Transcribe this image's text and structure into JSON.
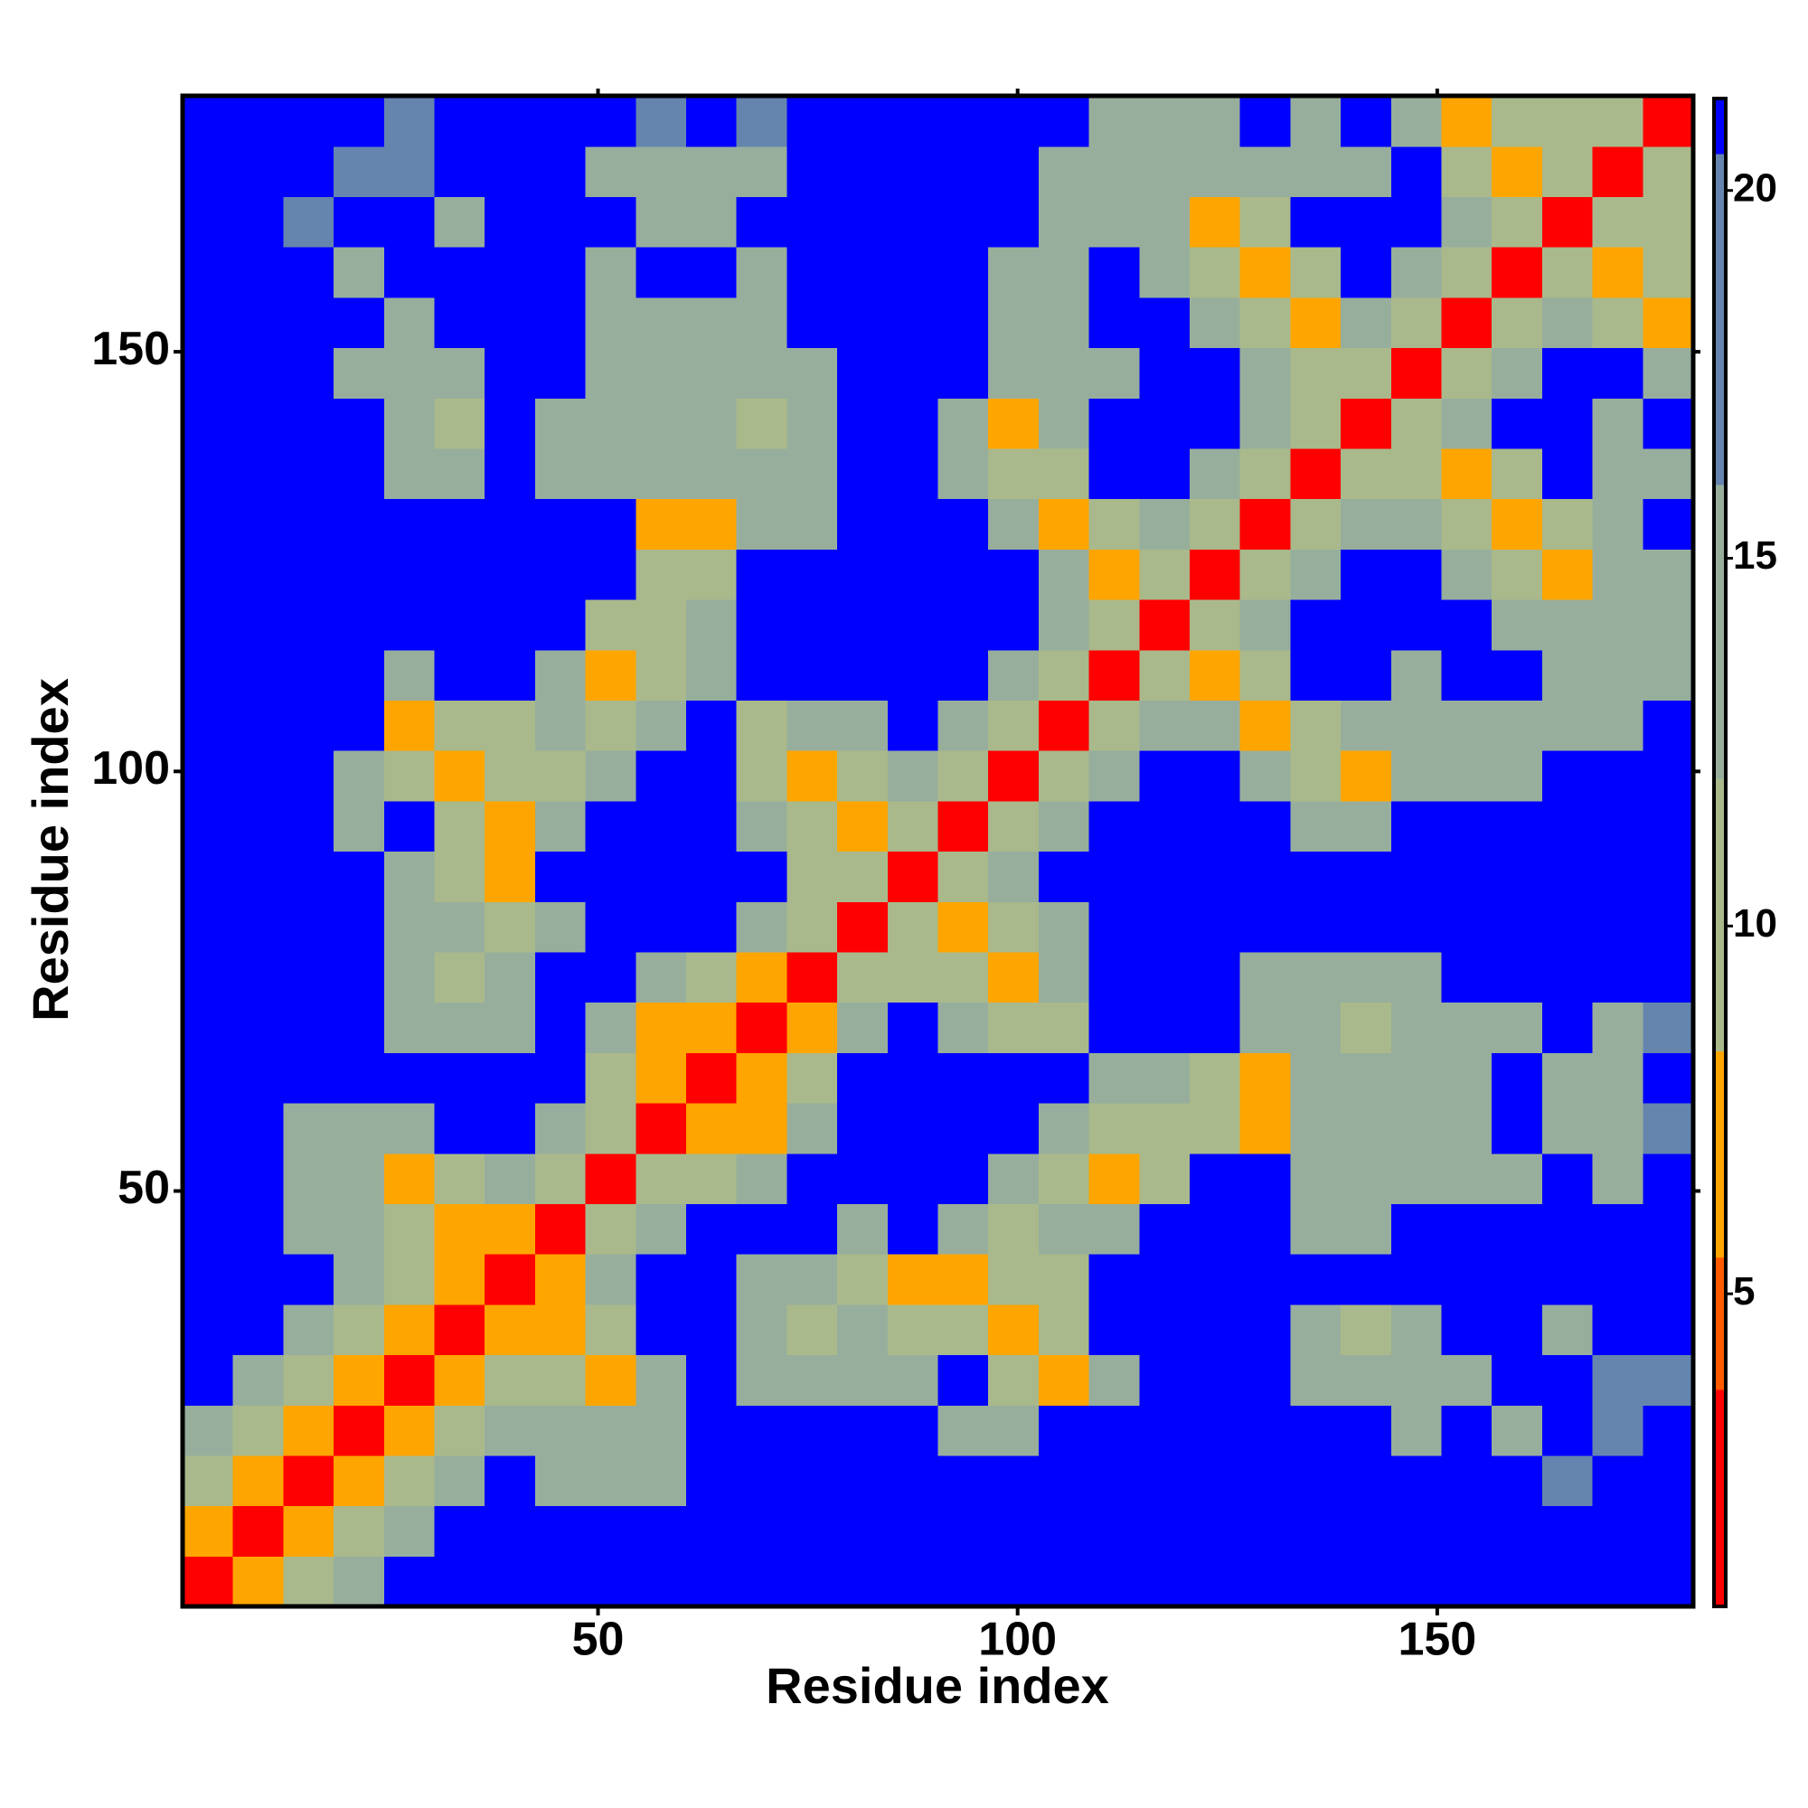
{
  "chart_data": {
    "type": "heatmap",
    "x_label": "Residue index",
    "y_label": "Residue index",
    "xlim": [
      0.5,
      180.5
    ],
    "ylim": [
      0.5,
      180.5
    ],
    "xticks": [
      50,
      100,
      150
    ],
    "yticks": [
      50,
      100,
      150
    ],
    "x": [
      3.5,
      9.5,
      15.5,
      21.5,
      27.5,
      33.5,
      39.5,
      45.5,
      51.5,
      57.5,
      63.5,
      69.5,
      75.5,
      81.5,
      87.5,
      93.5,
      99.5,
      105.5,
      111.5,
      117.5,
      123.5,
      129.5,
      135.5,
      141.5,
      147.5,
      153.5,
      159.5,
      165.5,
      171.5,
      177.5
    ],
    "y": [
      3.5,
      9.5,
      15.5,
      21.5,
      27.5,
      33.5,
      39.5,
      45.5,
      51.5,
      57.5,
      63.5,
      69.5,
      75.5,
      81.5,
      87.5,
      93.5,
      99.5,
      105.5,
      111.5,
      117.5,
      123.5,
      129.5,
      135.5,
      141.5,
      147.5,
      153.5,
      159.5,
      165.5,
      171.5,
      177.5
    ],
    "z": [
      [
        2,
        6,
        11,
        14,
        21,
        21,
        21,
        21,
        21,
        21,
        21,
        21,
        21,
        21,
        21,
        21,
        21,
        21,
        21,
        21,
        21,
        21,
        21,
        21,
        21,
        21,
        21,
        21,
        21,
        21
      ],
      [
        6,
        2,
        6,
        11,
        14,
        21,
        21,
        21,
        21,
        21,
        21,
        21,
        21,
        21,
        21,
        21,
        21,
        21,
        21,
        21,
        21,
        21,
        21,
        21,
        21,
        21,
        21,
        21,
        21,
        21
      ],
      [
        11,
        6,
        2,
        6,
        11,
        14,
        21,
        15,
        15,
        15,
        21,
        21,
        21,
        21,
        21,
        21,
        21,
        21,
        21,
        21,
        21,
        21,
        21,
        21,
        21,
        21,
        21,
        17,
        21,
        21
      ],
      [
        14,
        11,
        6,
        2,
        6,
        11,
        14,
        13,
        14,
        15,
        21,
        21,
        21,
        21,
        21,
        15,
        16,
        21,
        21,
        21,
        21,
        21,
        21,
        21,
        15,
        21,
        15,
        21,
        17,
        21
      ],
      [
        21,
        14,
        11,
        6,
        2,
        6,
        11,
        11,
        7,
        14,
        21,
        15,
        14,
        14,
        13,
        21,
        11,
        7,
        14,
        21,
        21,
        21,
        14,
        13,
        14,
        15,
        21,
        21,
        17,
        17
      ],
      [
        21,
        21,
        14,
        11,
        6,
        2,
        6,
        6,
        11,
        21,
        21,
        13,
        12,
        13,
        12,
        11,
        7,
        12,
        21,
        21,
        21,
        21,
        13,
        10,
        14,
        21,
        21,
        16,
        21,
        21
      ],
      [
        21,
        21,
        21,
        14,
        11,
        6,
        2,
        6,
        14,
        21,
        21,
        13,
        13,
        11,
        8,
        8,
        12,
        12,
        21,
        21,
        21,
        21,
        21,
        21,
        21,
        21,
        21,
        21,
        21,
        21
      ],
      [
        21,
        21,
        15,
        13,
        11,
        6,
        6,
        2,
        9,
        14,
        21,
        21,
        21,
        14,
        21,
        13,
        12,
        13,
        13,
        21,
        21,
        21,
        15,
        15,
        21,
        21,
        21,
        21,
        21,
        21
      ],
      [
        21,
        21,
        15,
        14,
        7,
        11,
        14,
        9,
        2,
        9,
        11,
        14,
        21,
        21,
        21,
        21,
        13,
        12,
        7,
        12,
        21,
        21,
        14,
        15,
        15,
        15,
        16,
        21,
        16,
        21
      ],
      [
        21,
        21,
        15,
        15,
        14,
        21,
        21,
        14,
        9,
        2,
        6,
        8,
        14,
        21,
        21,
        21,
        21,
        13,
        12,
        10,
        12,
        7,
        13,
        14,
        15,
        15,
        21,
        16,
        16,
        17
      ],
      [
        21,
        21,
        21,
        21,
        21,
        21,
        21,
        21,
        11,
        6,
        2,
        6,
        12,
        21,
        21,
        21,
        21,
        21,
        13,
        14,
        12,
        7,
        14,
        13,
        14,
        15,
        21,
        16,
        16,
        21
      ],
      [
        21,
        21,
        21,
        21,
        15,
        13,
        13,
        21,
        14,
        8,
        6,
        2,
        6,
        14,
        21,
        14,
        12,
        9,
        21,
        21,
        21,
        13,
        13,
        10,
        15,
        14,
        15,
        21,
        15,
        17
      ],
      [
        21,
        21,
        21,
        21,
        14,
        12,
        13,
        21,
        21,
        14,
        12,
        6,
        2,
        9,
        10,
        11,
        7,
        13,
        21,
        21,
        21,
        15,
        14,
        14,
        15,
        21,
        21,
        21,
        21,
        21
      ],
      [
        21,
        21,
        21,
        21,
        14,
        13,
        11,
        14,
        21,
        21,
        21,
        14,
        9,
        2,
        9,
        7,
        11,
        14,
        21,
        21,
        21,
        21,
        21,
        21,
        21,
        21,
        21,
        21,
        21,
        21
      ],
      [
        21,
        21,
        21,
        21,
        13,
        12,
        8,
        21,
        21,
        21,
        21,
        21,
        10,
        9,
        2,
        9,
        14,
        21,
        21,
        21,
        21,
        21,
        21,
        21,
        21,
        21,
        21,
        21,
        21,
        21
      ],
      [
        21,
        21,
        21,
        15,
        21,
        11,
        8,
        13,
        21,
        21,
        21,
        14,
        11,
        7,
        9,
        2,
        9,
        14,
        21,
        21,
        21,
        21,
        15,
        14,
        21,
        21,
        21,
        21,
        21,
        21
      ],
      [
        21,
        21,
        21,
        16,
        11,
        7,
        12,
        12,
        13,
        21,
        21,
        12,
        7,
        11,
        14,
        9,
        2,
        9,
        14,
        21,
        21,
        13,
        9,
        7,
        14,
        14,
        15,
        21,
        21,
        21
      ],
      [
        21,
        21,
        21,
        21,
        7,
        12,
        12,
        13,
        12,
        13,
        21,
        9,
        13,
        14,
        21,
        14,
        9,
        2,
        9,
        14,
        13,
        8,
        12,
        13,
        13,
        14,
        14,
        14,
        15,
        21
      ],
      [
        21,
        21,
        21,
        21,
        14,
        21,
        21,
        13,
        7,
        12,
        13,
        21,
        21,
        21,
        21,
        21,
        14,
        9,
        2,
        9,
        7,
        11,
        21,
        21,
        15,
        21,
        21,
        15,
        14,
        15
      ],
      [
        21,
        21,
        21,
        21,
        21,
        21,
        21,
        21,
        12,
        10,
        14,
        21,
        21,
        21,
        21,
        21,
        21,
        14,
        9,
        2,
        9,
        14,
        21,
        21,
        21,
        21,
        15,
        13,
        14,
        15
      ],
      [
        21,
        21,
        21,
        21,
        21,
        21,
        21,
        21,
        21,
        12,
        12,
        21,
        21,
        21,
        21,
        21,
        21,
        13,
        7,
        9,
        2,
        9,
        14,
        21,
        21,
        14,
        12,
        7,
        13,
        14
      ],
      [
        21,
        21,
        21,
        21,
        21,
        21,
        21,
        21,
        21,
        7,
        7,
        13,
        15,
        21,
        21,
        21,
        13,
        8,
        11,
        14,
        9,
        2,
        9,
        14,
        13,
        12,
        7,
        12,
        15,
        21
      ],
      [
        21,
        21,
        21,
        21,
        14,
        13,
        21,
        15,
        14,
        13,
        14,
        13,
        14,
        21,
        21,
        15,
        9,
        12,
        21,
        21,
        14,
        9,
        2,
        9,
        10,
        7,
        12,
        21,
        14,
        15
      ],
      [
        21,
        21,
        21,
        21,
        13,
        10,
        21,
        15,
        15,
        14,
        13,
        10,
        14,
        21,
        21,
        14,
        7,
        13,
        21,
        21,
        21,
        14,
        9,
        2,
        9,
        14,
        21,
        21,
        14,
        21
      ],
      [
        21,
        21,
        21,
        15,
        14,
        14,
        21,
        21,
        15,
        15,
        14,
        15,
        15,
        21,
        21,
        21,
        14,
        13,
        15,
        21,
        21,
        13,
        10,
        9,
        2,
        9,
        14,
        21,
        21,
        14
      ],
      [
        21,
        21,
        21,
        21,
        15,
        21,
        21,
        21,
        15,
        15,
        15,
        14,
        21,
        21,
        21,
        21,
        14,
        14,
        21,
        21,
        14,
        12,
        7,
        14,
        9,
        2,
        9,
        14,
        12,
        8
      ],
      [
        21,
        21,
        21,
        15,
        21,
        21,
        21,
        21,
        16,
        21,
        21,
        15,
        21,
        21,
        21,
        21,
        15,
        14,
        21,
        15,
        12,
        7,
        12,
        21,
        14,
        9,
        2,
        9,
        7,
        12
      ],
      [
        21,
        21,
        17,
        21,
        21,
        16,
        21,
        21,
        21,
        16,
        16,
        21,
        21,
        21,
        21,
        21,
        21,
        14,
        15,
        13,
        7,
        12,
        21,
        21,
        21,
        14,
        9,
        2,
        9,
        10
      ],
      [
        21,
        21,
        21,
        17,
        17,
        21,
        21,
        21,
        16,
        16,
        16,
        15,
        21,
        21,
        21,
        21,
        21,
        15,
        14,
        14,
        13,
        15,
        14,
        14,
        21,
        12,
        7,
        9,
        2,
        9
      ],
      [
        21,
        21,
        21,
        21,
        17,
        21,
        21,
        21,
        21,
        17,
        21,
        17,
        21,
        21,
        21,
        21,
        21,
        21,
        15,
        15,
        14,
        21,
        15,
        21,
        14,
        8,
        12,
        10,
        9,
        2
      ]
    ],
    "colorbar": {
      "lim": [
        0.75,
        21.25
      ],
      "ticks": [
        5,
        10,
        15,
        20
      ],
      "levels": [
        {
          "max": 3.7,
          "color": "#ff0000"
        },
        {
          "max": 5.5,
          "color": "#ff5a00"
        },
        {
          "max": 8.3,
          "color": "#ffa500"
        },
        {
          "max": 12,
          "color": "#a9b98b"
        },
        {
          "max": 16,
          "color": "#98ae9c"
        },
        {
          "max": 20.5,
          "color": "#6585ae"
        },
        {
          "max": 21.25,
          "color": "#0000ff"
        }
      ]
    }
  }
}
